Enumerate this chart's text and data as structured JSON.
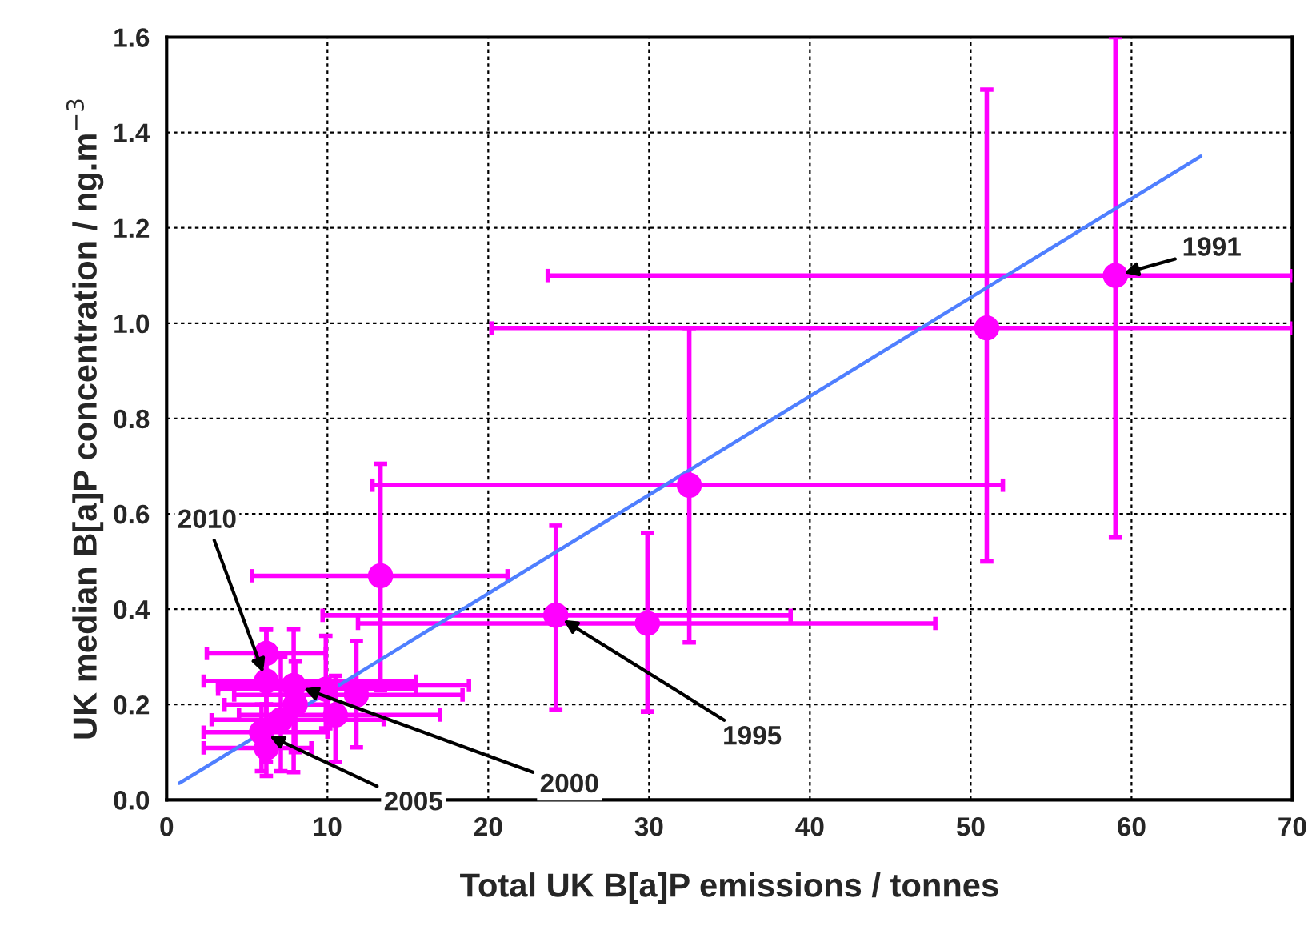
{
  "chart_data": {
    "type": "scatter",
    "xlabel": "Total UK B[a]P emissions / tonnes",
    "ylabel": "UK median B[a]P concentration / ng.m$^{−3}$",
    "xlim": [
      0,
      70
    ],
    "ylim": [
      0,
      1.6
    ],
    "xticks": [
      0,
      10,
      20,
      30,
      40,
      50,
      60,
      70
    ],
    "yticks": [
      {
        "value": 0,
        "label": "0.0"
      },
      {
        "value": 0.2,
        "label": "0.2"
      },
      {
        "value": 0.4,
        "label": "0.4"
      },
      {
        "value": 0.6,
        "label": "0.6"
      },
      {
        "value": 0.8,
        "label": "0.8"
      },
      {
        "value": 1.0,
        "label": "1.0"
      },
      {
        "value": 1.2,
        "label": "1.2"
      },
      {
        "value": 1.4,
        "label": "1.4"
      },
      {
        "value": 1.6,
        "label": "1.6"
      }
    ],
    "grid": true,
    "series": [
      {
        "color": "#ff00ff",
        "marker": "circle",
        "x": [
          59,
          51,
          32.5,
          24.2,
          29.9,
          13.3,
          6.2,
          6.2,
          7.9,
          9.9,
          11.8,
          8.0,
          10.5,
          7.1,
          5.9,
          6.2
        ],
        "values": [
          1.1,
          0.99,
          0.66,
          0.387,
          0.37,
          0.47,
          0.307,
          0.249,
          0.24,
          0.232,
          0.22,
          0.2,
          0.178,
          0.168,
          0.142,
          0.109
        ],
        "errors": [
          [
            0.55,
            1.6
          ],
          [
            0.5,
            1.49
          ],
          [
            0.33,
            0.99
          ],
          [
            0.19,
            0.575
          ],
          [
            0.185,
            0.56
          ],
          [
            0.23,
            0.705
          ],
          [
            0.2,
            0.357
          ],
          [
            0.08,
            0.357
          ],
          [
            0.058,
            0.357
          ],
          [
            0.15,
            0.344
          ],
          [
            0.11,
            0.333
          ],
          [
            0.1,
            0.29
          ],
          [
            0.08,
            0.26
          ],
          [
            0.06,
            0.3
          ],
          [
            0.06,
            0.2
          ],
          [
            0.05,
            0.2
          ]
        ],
        "xerrors": [
          [
            23.7,
            70
          ],
          [
            20.2,
            70
          ],
          [
            12.8,
            52
          ],
          [
            9.7,
            38.8
          ],
          [
            11.9,
            47.8
          ],
          [
            5.3,
            21.2
          ],
          [
            2.5,
            9.9
          ],
          [
            2.3,
            15.5
          ],
          [
            3.2,
            18.8
          ],
          [
            3.2,
            15.5
          ],
          [
            4.2,
            18.4
          ],
          [
            3.6,
            10.0
          ],
          [
            4.5,
            17.0
          ],
          [
            2.8,
            13.5
          ],
          [
            2.3,
            10.0
          ],
          [
            2.3,
            9.0
          ]
        ]
      },
      {
        "type": "line",
        "color": "#4f7fff",
        "x": [
          0.8,
          64.3
        ],
        "values": [
          0.035,
          1.35
        ]
      }
    ],
    "annotations": [
      {
        "text": "1991",
        "x": 59,
        "y": 1.1
      },
      {
        "text": "2010",
        "x": 6.2,
        "y": 0.249
      },
      {
        "text": "2000",
        "x": 8.0,
        "y": 0.24
      },
      {
        "text": "1995",
        "x": 24.2,
        "y": 0.387
      },
      {
        "text": "2005",
        "x": 5.9,
        "y": 0.142
      }
    ]
  }
}
